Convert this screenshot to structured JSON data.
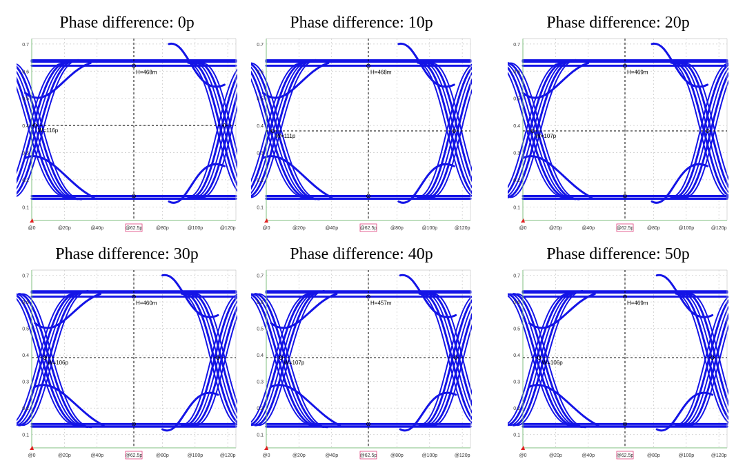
{
  "colors": {
    "trace": "#1414e6",
    "axis": "#7fbf7f",
    "grid": "#c8c8c8",
    "marker_box": "#e0407a",
    "crosshair": "#000000"
  },
  "chart_data": [
    {
      "type": "line",
      "title": "Phase difference: 0p",
      "x_ticks": [
        "@0",
        "@20p",
        "@40p",
        "@62.5p",
        "@80p",
        "@100p",
        "@120p"
      ],
      "y_ticks": [
        "0.1",
        "0.2",
        "0.3",
        "0.4",
        "0.5",
        "0.6",
        "0.7"
      ],
      "ylim": [
        0.05,
        0.72
      ],
      "xlim": [
        0,
        125
      ],
      "eye_height_label": "H=468m",
      "eye_width_label": "W=116p",
      "cross_y": 0.4,
      "cross_left_x": 2,
      "cross_right_x": 118,
      "high_level": [
        0.62,
        0.64
      ],
      "low_level": [
        0.13,
        0.14
      ]
    },
    {
      "type": "line",
      "title": "Phase difference: 10p",
      "x_ticks": [
        "@0",
        "@20p",
        "@40p",
        "@62.5p",
        "@80p",
        "@100p",
        "@120p"
      ],
      "y_ticks": [
        "0.1",
        "0.2",
        "0.3",
        "0.4",
        "0.5",
        "0.6",
        "0.7"
      ],
      "ylim": [
        0.05,
        0.72
      ],
      "xlim": [
        0,
        125
      ],
      "eye_height_label": "H=468m",
      "eye_width_label": "W=111p",
      "cross_y": 0.38,
      "cross_left_x": 4,
      "cross_right_x": 115,
      "high_level": [
        0.62,
        0.64
      ],
      "low_level": [
        0.13,
        0.14
      ]
    },
    {
      "type": "line",
      "title": "Phase difference: 20p",
      "x_ticks": [
        "@0",
        "@20p",
        "@40p",
        "@62.5p",
        "@80p",
        "@100p",
        "@120p"
      ],
      "y_ticks": [
        "0.1",
        "0.2",
        "0.3",
        "0.4",
        "0.5",
        "0.6",
        "0.7"
      ],
      "ylim": [
        0.05,
        0.72
      ],
      "xlim": [
        0,
        125
      ],
      "eye_height_label": "H=469m",
      "eye_width_label": "W=107p",
      "cross_y": 0.38,
      "cross_left_x": 6,
      "cross_right_x": 113,
      "high_level": [
        0.62,
        0.64
      ],
      "low_level": [
        0.13,
        0.14
      ]
    },
    {
      "type": "line",
      "title": "Phase difference: 30p",
      "x_ticks": [
        "@0",
        "@20p",
        "@40p",
        "@62.5p",
        "@80p",
        "@100p",
        "@120p"
      ],
      "y_ticks": [
        "0.1",
        "0.2",
        "0.3",
        "0.4",
        "0.5",
        "0.6",
        "0.7"
      ],
      "ylim": [
        0.05,
        0.72
      ],
      "xlim": [
        0,
        125
      ],
      "eye_height_label": "H=460m",
      "eye_width_label": "W=106p",
      "cross_y": 0.39,
      "cross_left_x": 8,
      "cross_right_x": 114,
      "high_level": [
        0.62,
        0.64
      ],
      "low_level": [
        0.13,
        0.14
      ]
    },
    {
      "type": "line",
      "title": "Phase difference: 40p",
      "x_ticks": [
        "@0",
        "@20p",
        "@40p",
        "@62.5p",
        "@80p",
        "@100p",
        "@120p"
      ],
      "y_ticks": [
        "0.1",
        "0.2",
        "0.3",
        "0.4",
        "0.5",
        "0.6",
        "0.7"
      ],
      "ylim": [
        0.05,
        0.72
      ],
      "xlim": [
        0,
        125
      ],
      "eye_height_label": "H=457m",
      "eye_width_label": "W=107p",
      "cross_y": 0.39,
      "cross_left_x": 9,
      "cross_right_x": 116,
      "high_level": [
        0.62,
        0.64
      ],
      "low_level": [
        0.13,
        0.14
      ]
    },
    {
      "type": "line",
      "title": "Phase difference: 50p",
      "x_ticks": [
        "@0",
        "@20p",
        "@40p",
        "@62.5p",
        "@80p",
        "@100p",
        "@120p"
      ],
      "y_ticks": [
        "0.1",
        "0.2",
        "0.3",
        "0.4",
        "0.5",
        "0.6",
        "0.7"
      ],
      "ylim": [
        0.05,
        0.72
      ],
      "xlim": [
        0,
        125
      ],
      "eye_height_label": "H=469m",
      "eye_width_label": "W=106p",
      "cross_y": 0.39,
      "cross_left_x": 10,
      "cross_right_x": 116,
      "high_level": [
        0.62,
        0.64
      ],
      "low_level": [
        0.13,
        0.14
      ]
    }
  ]
}
